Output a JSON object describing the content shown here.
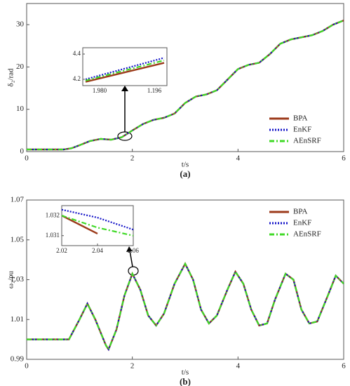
{
  "chart_data": [
    {
      "type": "line",
      "panel": "(a)",
      "xlabel": "t/s",
      "ylabel": "δ₂/rad",
      "xlim": [
        0,
        6
      ],
      "xticks": [
        0,
        2,
        4,
        6
      ],
      "ylim": [
        0,
        35
      ],
      "yticks": [
        0,
        10,
        20,
        30
      ],
      "legend": "lower right",
      "x": [
        0,
        0.4,
        0.7,
        0.85,
        1.0,
        1.2,
        1.4,
        1.6,
        1.8,
        2.0,
        2.2,
        2.4,
        2.6,
        2.8,
        3.0,
        3.2,
        3.4,
        3.6,
        3.8,
        4.0,
        4.2,
        4.4,
        4.6,
        4.8,
        5.0,
        5.2,
        5.4,
        5.6,
        5.8,
        6.0
      ],
      "series": [
        {
          "name": "BPA",
          "color": "#9c3a1a",
          "style": "solid",
          "values": [
            0.5,
            0.5,
            0.5,
            0.8,
            1.5,
            2.5,
            3.0,
            2.8,
            3.4,
            5.0,
            6.5,
            7.5,
            8.0,
            9.0,
            11.5,
            13.0,
            13.5,
            14.5,
            17.0,
            19.5,
            20.5,
            21.0,
            23.0,
            25.5,
            26.5,
            27.0,
            27.5,
            28.5,
            30.0,
            31.0
          ]
        },
        {
          "name": "EnKF",
          "color": "#1414c8",
          "style": "dotted",
          "values": [
            0.5,
            0.5,
            0.5,
            0.8,
            1.5,
            2.5,
            3.0,
            2.8,
            3.4,
            5.0,
            6.5,
            7.5,
            8.0,
            9.0,
            11.5,
            13.0,
            13.5,
            14.5,
            17.0,
            19.5,
            20.5,
            21.0,
            23.0,
            25.5,
            26.5,
            27.0,
            27.5,
            28.5,
            30.0,
            31.0
          ]
        },
        {
          "name": "AEnSRF",
          "color": "#3fd926",
          "style": "dashdot",
          "values": [
            0.5,
            0.5,
            0.5,
            0.8,
            1.5,
            2.5,
            3.0,
            2.8,
            3.4,
            5.0,
            6.5,
            7.5,
            8.0,
            9.0,
            11.5,
            13.0,
            13.5,
            14.5,
            17.0,
            19.5,
            20.5,
            21.0,
            23.0,
            25.5,
            26.5,
            27.0,
            27.5,
            28.5,
            30.0,
            31.0
          ]
        }
      ],
      "inset": {
        "ylim": [
          4.15,
          4.45
        ],
        "yticks": [
          4.2,
          4.4
        ],
        "xtick_labels": [
          "1.980",
          "1.196"
        ],
        "series": [
          {
            "values": [
              4.18,
              4.33
            ]
          },
          {
            "values": [
              4.2,
              4.37
            ]
          },
          {
            "values": [
              4.19,
              4.35
            ]
          }
        ]
      }
    },
    {
      "type": "line",
      "panel": "(b)",
      "xlabel": "t/s",
      "ylabel": "ω₂/pu",
      "xlim": [
        0,
        6
      ],
      "xticks": [
        0,
        2,
        4,
        6
      ],
      "ylim": [
        0.99,
        1.07
      ],
      "yticks": [
        0.99,
        1.01,
        1.03,
        1.05,
        1.07
      ],
      "legend": "upper right",
      "x": [
        0,
        0.4,
        0.8,
        1.0,
        1.15,
        1.3,
        1.5,
        1.55,
        1.7,
        1.85,
        2.0,
        2.15,
        2.3,
        2.45,
        2.6,
        2.8,
        3.0,
        3.15,
        3.3,
        3.45,
        3.6,
        3.8,
        3.95,
        4.1,
        4.25,
        4.4,
        4.55,
        4.7,
        4.9,
        5.05,
        5.2,
        5.35,
        5.5,
        5.7,
        5.85,
        6.0
      ],
      "series": [
        {
          "name": "BPA",
          "color": "#9c3a1a",
          "style": "solid",
          "values": [
            1.0,
            1.0,
            1.0,
            1.01,
            1.018,
            1.01,
            0.997,
            0.995,
            1.005,
            1.022,
            1.033,
            1.025,
            1.012,
            1.007,
            1.013,
            1.028,
            1.038,
            1.03,
            1.015,
            1.008,
            1.012,
            1.025,
            1.034,
            1.028,
            1.015,
            1.007,
            1.008,
            1.02,
            1.033,
            1.03,
            1.015,
            1.008,
            1.009,
            1.022,
            1.032,
            1.028
          ]
        },
        {
          "name": "EnKF",
          "color": "#1414c8",
          "style": "dotted",
          "values": [
            1.0,
            1.0,
            1.0,
            1.01,
            1.018,
            1.01,
            0.997,
            0.995,
            1.005,
            1.022,
            1.033,
            1.025,
            1.012,
            1.007,
            1.013,
            1.028,
            1.038,
            1.03,
            1.015,
            1.008,
            1.012,
            1.025,
            1.034,
            1.028,
            1.015,
            1.007,
            1.008,
            1.02,
            1.033,
            1.03,
            1.015,
            1.008,
            1.009,
            1.022,
            1.032,
            1.028
          ]
        },
        {
          "name": "AEnSRF",
          "color": "#3fd926",
          "style": "dashdot",
          "values": [
            1.0,
            1.0,
            1.0,
            1.01,
            1.018,
            1.01,
            0.997,
            0.995,
            1.005,
            1.022,
            1.033,
            1.025,
            1.012,
            1.007,
            1.013,
            1.028,
            1.038,
            1.03,
            1.015,
            1.008,
            1.012,
            1.025,
            1.034,
            1.028,
            1.015,
            1.007,
            1.008,
            1.02,
            1.033,
            1.03,
            1.015,
            1.008,
            1.009,
            1.022,
            1.032,
            1.028
          ]
        }
      ],
      "inset": {
        "xlim": [
          2.02,
          2.06
        ],
        "xticks": [
          2.02,
          2.04,
          2.06
        ],
        "ylim": [
          1.0305,
          1.0325
        ],
        "yticks": [
          1.031,
          1.032
        ],
        "x": [
          2.02,
          2.04,
          2.06
        ],
        "series": [
          {
            "values": [
              1.032,
              1.0311,
              null
            ]
          },
          {
            "values": [
              1.0323,
              1.0319,
              1.0313
            ]
          },
          {
            "values": [
              1.032,
              1.0314,
              1.031
            ]
          }
        ]
      }
    }
  ]
}
